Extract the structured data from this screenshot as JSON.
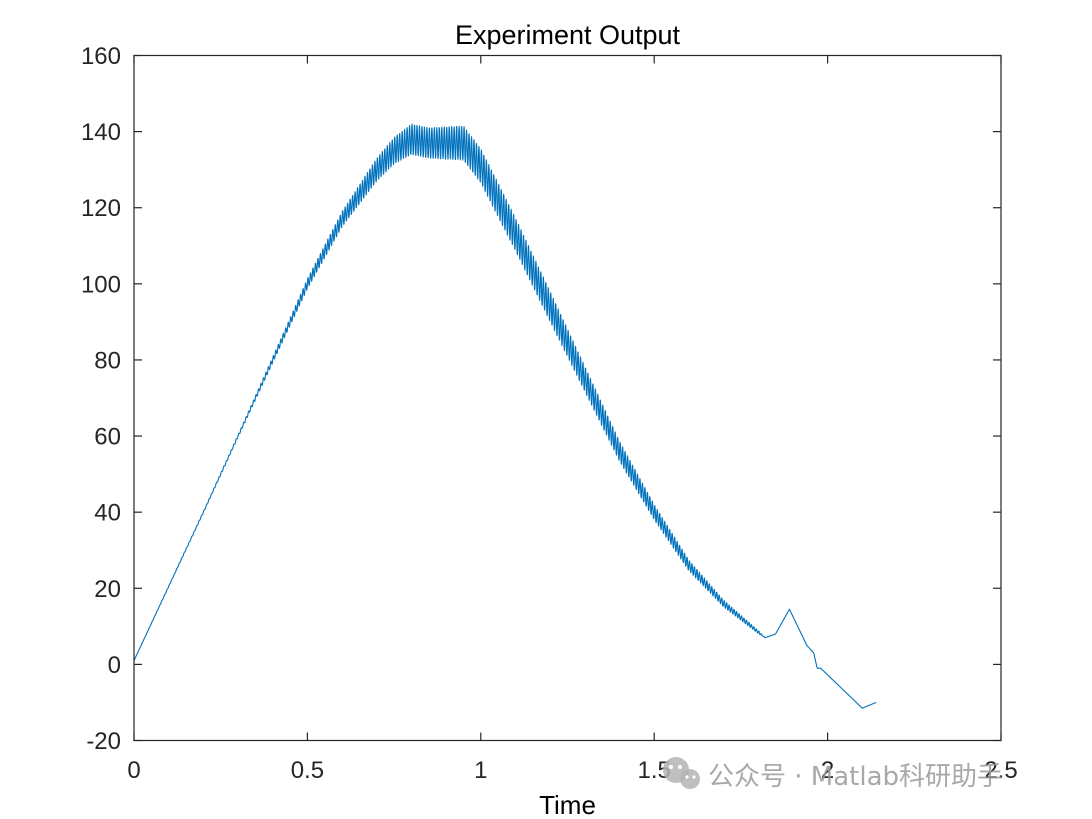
{
  "chart_data": {
    "type": "line",
    "title": "Experiment Output",
    "xlabel": "Time",
    "ylabel": "",
    "xlim": [
      0,
      2.5
    ],
    "ylim": [
      -20,
      160
    ],
    "xticks": [
      0,
      0.5,
      1,
      1.5,
      2,
      2.5
    ],
    "yticks": [
      -20,
      0,
      20,
      40,
      60,
      80,
      100,
      120,
      140,
      160
    ],
    "xtick_labels": [
      "0",
      "0.5",
      "1",
      "1.5",
      "2",
      "2.5"
    ],
    "ytick_labels": [
      "-20",
      "0",
      "20",
      "40",
      "60",
      "80",
      "100",
      "120",
      "140",
      "160"
    ],
    "grid": false,
    "box": true,
    "series": [
      {
        "color": "#0072BD",
        "trend": [
          [
            0.0,
            1
          ],
          [
            0.2,
            40
          ],
          [
            0.3,
            60
          ],
          [
            0.4,
            80
          ],
          [
            0.5,
            100
          ],
          [
            0.6,
            117
          ],
          [
            0.7,
            130
          ],
          [
            0.75,
            135
          ],
          [
            0.8,
            138
          ],
          [
            0.85,
            137
          ],
          [
            0.9,
            137
          ],
          [
            0.95,
            137
          ],
          [
            1.0,
            131
          ],
          [
            1.1,
            113
          ],
          [
            1.2,
            94
          ],
          [
            1.3,
            75
          ],
          [
            1.4,
            56
          ],
          [
            1.5,
            40
          ],
          [
            1.6,
            26
          ],
          [
            1.7,
            16
          ],
          [
            1.78,
            10
          ],
          [
            1.82,
            7
          ],
          [
            1.85,
            8
          ],
          [
            1.89,
            14.5
          ],
          [
            1.94,
            5
          ],
          [
            1.96,
            3
          ],
          [
            1.97,
            -1
          ],
          [
            1.98,
            -1
          ],
          [
            2.1,
            -11.5
          ],
          [
            2.14,
            -10
          ]
        ],
        "oscillation": [
          [
            0.0,
            0
          ],
          [
            0.3,
            0.3
          ],
          [
            0.45,
            1
          ],
          [
            0.6,
            2
          ],
          [
            0.7,
            3
          ],
          [
            0.8,
            4
          ],
          [
            0.85,
            4
          ],
          [
            0.95,
            4.5
          ],
          [
            1.05,
            4.5
          ],
          [
            1.2,
            4
          ],
          [
            1.35,
            3
          ],
          [
            1.5,
            2
          ],
          [
            1.62,
            1.3
          ],
          [
            1.72,
            0.8
          ],
          [
            1.8,
            0.4
          ],
          [
            1.82,
            0
          ],
          [
            2.14,
            0
          ]
        ],
        "oscillation_frequency": 140
      }
    ]
  },
  "watermark": {
    "text": "公众号 · Matlab科研助手",
    "icon": "wechat-icon"
  }
}
